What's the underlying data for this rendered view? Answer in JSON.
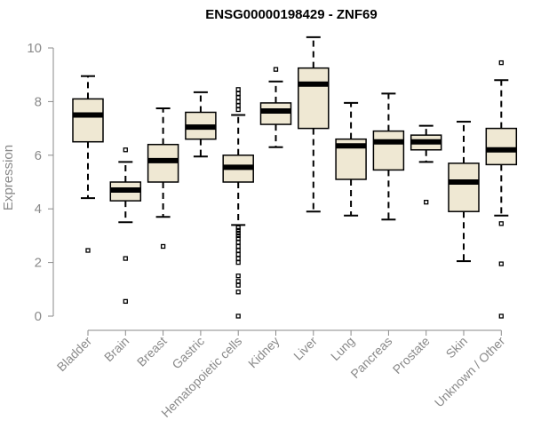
{
  "chart_data": {
    "type": "box",
    "title": "ENSG00000198429 - ZNF69",
    "ylabel": "Expression",
    "xlabel": "",
    "ylim": [
      0,
      10
    ],
    "yticks": [
      0,
      2,
      4,
      6,
      8,
      10
    ],
    "categories": [
      "Bladder",
      "Brain",
      "Breast",
      "Gastric",
      "Hematopoietic cells",
      "Kidney",
      "Liver",
      "Lung",
      "Pancreas",
      "Prostate",
      "Skin",
      "Unknown / Other"
    ],
    "boxes": [
      {
        "whisker_low": 4.4,
        "q1": 6.5,
        "median": 7.5,
        "q3": 8.1,
        "whisker_high": 8.95,
        "outliers": [
          2.45
        ]
      },
      {
        "whisker_low": 3.5,
        "q1": 4.3,
        "median": 4.7,
        "q3": 5.0,
        "whisker_high": 5.75,
        "outliers": [
          6.2,
          2.15,
          0.55
        ]
      },
      {
        "whisker_low": 3.7,
        "q1": 5.0,
        "median": 5.8,
        "q3": 6.4,
        "whisker_high": 7.75,
        "outliers": [
          2.6
        ]
      },
      {
        "whisker_low": 5.95,
        "q1": 6.6,
        "median": 7.05,
        "q3": 7.6,
        "whisker_high": 8.35,
        "outliers": []
      },
      {
        "whisker_low": 3.4,
        "q1": 5.0,
        "median": 5.55,
        "q3": 6.0,
        "whisker_high": 7.5,
        "outliers": [
          8.45,
          8.3,
          8.15,
          8.0,
          7.85,
          7.7,
          3.3,
          3.2,
          3.1,
          3.0,
          2.9,
          2.75,
          2.6,
          2.45,
          2.3,
          2.15,
          2.0,
          1.5,
          1.3,
          1.15,
          0.9,
          0.0
        ]
      },
      {
        "whisker_low": 6.3,
        "q1": 7.15,
        "median": 7.65,
        "q3": 7.95,
        "whisker_high": 8.75,
        "outliers": [
          9.2
        ]
      },
      {
        "whisker_low": 3.9,
        "q1": 7.0,
        "median": 8.65,
        "q3": 9.25,
        "whisker_high": 10.4,
        "outliers": []
      },
      {
        "whisker_low": 3.75,
        "q1": 5.1,
        "median": 6.35,
        "q3": 6.6,
        "whisker_high": 7.95,
        "outliers": []
      },
      {
        "whisker_low": 3.6,
        "q1": 5.45,
        "median": 6.5,
        "q3": 6.9,
        "whisker_high": 8.3,
        "outliers": []
      },
      {
        "whisker_low": 5.75,
        "q1": 6.2,
        "median": 6.5,
        "q3": 6.75,
        "whisker_high": 7.1,
        "outliers": [
          4.25
        ]
      },
      {
        "whisker_low": 2.05,
        "q1": 3.9,
        "median": 5.0,
        "q3": 5.7,
        "whisker_high": 7.25,
        "outliers": []
      },
      {
        "whisker_low": 3.75,
        "q1": 5.65,
        "median": 6.2,
        "q3": 7.0,
        "whisker_high": 8.8,
        "outliers": [
          9.45,
          3.45,
          1.95,
          0.0
        ]
      }
    ],
    "box_fill": "#efe8d3",
    "grid": false,
    "legend": "none"
  }
}
